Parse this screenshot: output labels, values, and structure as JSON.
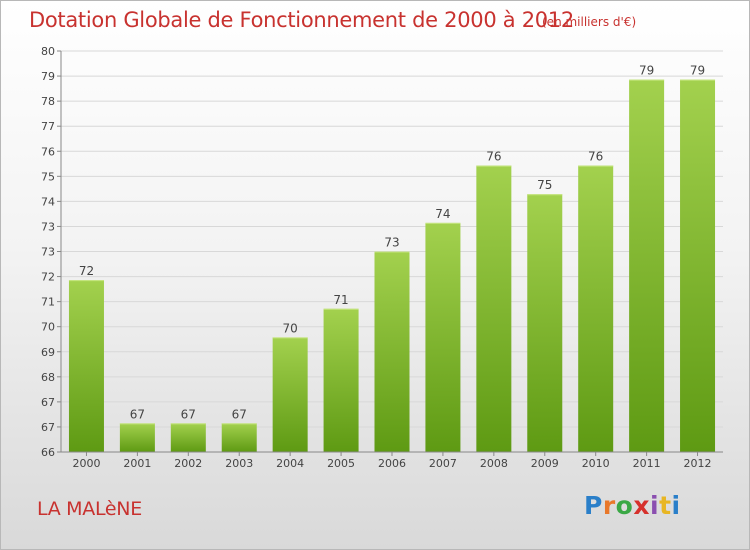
{
  "header": {
    "title": "Dotation Globale de Fonctionnement de 2000 à 2012",
    "unit": "(en milliers d'€)"
  },
  "footer": {
    "commune": "LA MALèNE",
    "logo_text": "Proxiti"
  },
  "colors": {
    "title": "#c8322f",
    "bar_light": "#a3d14e",
    "bar_dark": "#5e9a13",
    "grid": "#d8d8d8"
  },
  "chart_data": {
    "type": "bar",
    "title": "Dotation Globale de Fonctionnement de 2000 à 2012",
    "subtitle": "(en milliers d'€)",
    "categories": [
      "2000",
      "2001",
      "2002",
      "2003",
      "2004",
      "2005",
      "2006",
      "2007",
      "2008",
      "2009",
      "2010",
      "2011",
      "2012"
    ],
    "values": [
      72,
      67,
      67,
      67,
      70,
      71,
      73,
      74,
      76,
      75,
      76,
      79,
      79
    ],
    "y_ticks": [
      "66",
      "67",
      "67",
      "68",
      "69",
      "70",
      "71",
      "72",
      "73",
      "73",
      "74",
      "75",
      "76",
      "77",
      "78",
      "79",
      "80"
    ],
    "ylim": [
      66,
      80
    ],
    "xlabel": "",
    "ylabel": "",
    "grid": true,
    "legend": "none"
  }
}
